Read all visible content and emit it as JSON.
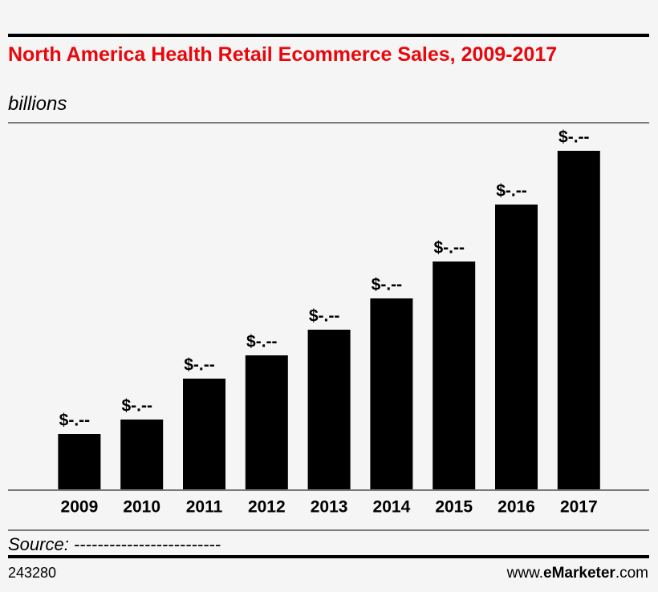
{
  "chart_data": {
    "type": "bar",
    "title": "North America Health Retail Ecommerce Sales, 2009-2017",
    "subtitle": "billions",
    "categories": [
      "2009",
      "2010",
      "2011",
      "2012",
      "2013",
      "2014",
      "2015",
      "2016",
      "2017"
    ],
    "values": [
      69,
      87,
      138,
      167,
      199,
      238,
      284,
      355,
      422
    ],
    "value_labels": [
      "$-.--",
      "$-.--",
      "$-.--",
      "$-.--",
      "$-.--",
      "$-.--",
      "$-.--",
      "$-.--",
      "$-.--"
    ],
    "color": "#000000",
    "source": "Source: -------------------------",
    "chart_id": "243280",
    "brand": [
      "www.",
      "eMarketer",
      ".com"
    ]
  }
}
